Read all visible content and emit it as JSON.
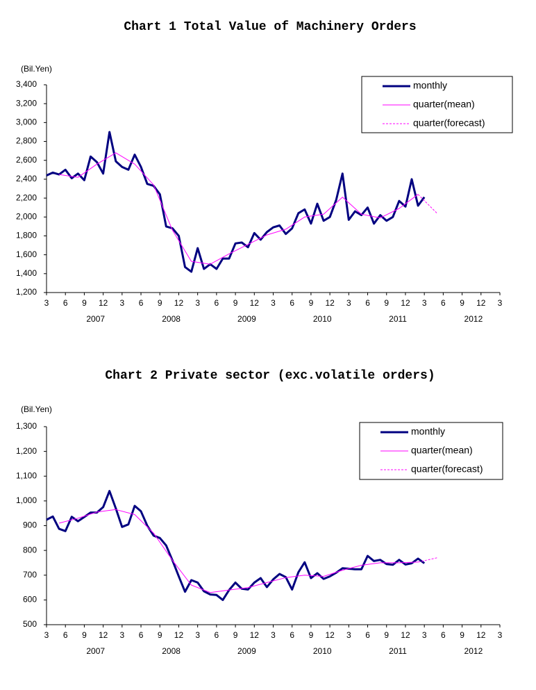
{
  "chart_data": [
    {
      "type": "line",
      "title": "Chart 1 Total Value of Machinery Orders",
      "y_unit": "(Bil.Yen)",
      "x": [
        "2007-03",
        "2007-04",
        "2007-05",
        "2007-06",
        "2007-07",
        "2007-08",
        "2007-09",
        "2007-10",
        "2007-11",
        "2007-12",
        "2008-01",
        "2008-02",
        "2008-03",
        "2008-04",
        "2008-05",
        "2008-06",
        "2008-07",
        "2008-08",
        "2008-09",
        "2008-10",
        "2008-11",
        "2008-12",
        "2009-01",
        "2009-02",
        "2009-03",
        "2009-04",
        "2009-05",
        "2009-06",
        "2009-07",
        "2009-08",
        "2009-09",
        "2009-10",
        "2009-11",
        "2009-12",
        "2010-01",
        "2010-02",
        "2010-03",
        "2010-04",
        "2010-05",
        "2010-06",
        "2010-07",
        "2010-08",
        "2010-09",
        "2010-10",
        "2010-11",
        "2010-12",
        "2011-01",
        "2011-02",
        "2011-03",
        "2011-04",
        "2011-05",
        "2011-06",
        "2011-07",
        "2011-08",
        "2011-09",
        "2011-10",
        "2011-11",
        "2011-12",
        "2012-01",
        "2012-02",
        "2012-03"
      ],
      "xlim": [
        "2007-03",
        "2013-03"
      ],
      "xticks": [
        {
          "value": "2007-03",
          "label": "3"
        },
        {
          "value": "2007-06",
          "label": "6"
        },
        {
          "value": "2007-09",
          "label": "9"
        },
        {
          "value": "2007-12",
          "label": "12"
        },
        {
          "value": "2008-03",
          "label": "3"
        },
        {
          "value": "2008-06",
          "label": "6"
        },
        {
          "value": "2008-09",
          "label": "9"
        },
        {
          "value": "2008-12",
          "label": "12"
        },
        {
          "value": "2009-03",
          "label": "3"
        },
        {
          "value": "2009-06",
          "label": "6"
        },
        {
          "value": "2009-09",
          "label": "9"
        },
        {
          "value": "2009-12",
          "label": "12"
        },
        {
          "value": "2010-03",
          "label": "3"
        },
        {
          "value": "2010-06",
          "label": "6"
        },
        {
          "value": "2010-09",
          "label": "9"
        },
        {
          "value": "2010-12",
          "label": "12"
        },
        {
          "value": "2011-03",
          "label": "3"
        },
        {
          "value": "2011-06",
          "label": "6"
        },
        {
          "value": "2011-09",
          "label": "9"
        },
        {
          "value": "2011-12",
          "label": "12"
        },
        {
          "value": "2012-03",
          "label": "3"
        },
        {
          "value": "2012-06",
          "label": "6"
        },
        {
          "value": "2012-09",
          "label": "9"
        },
        {
          "value": "2012-12",
          "label": "12"
        },
        {
          "value": "2013-03",
          "label": "3"
        }
      ],
      "x_years": [
        "2007",
        "2008",
        "2009",
        "2010",
        "2011",
        "2012"
      ],
      "ylim": [
        1200,
        3400
      ],
      "yticks": [
        {
          "value": 1200,
          "label": "1,200"
        },
        {
          "value": 1400,
          "label": "1,400"
        },
        {
          "value": 1600,
          "label": "1,600"
        },
        {
          "value": 1800,
          "label": "1,800"
        },
        {
          "value": 2000,
          "label": "2,000"
        },
        {
          "value": 2200,
          "label": "2,200"
        },
        {
          "value": 2400,
          "label": "2,400"
        },
        {
          "value": 2600,
          "label": "2,600"
        },
        {
          "value": 2800,
          "label": "2,800"
        },
        {
          "value": 3000,
          "label": "3,000"
        },
        {
          "value": 3200,
          "label": "3,200"
        },
        {
          "value": 3400,
          "label": "3,400"
        }
      ],
      "grid": false,
      "legend": "upper right",
      "series": [
        {
          "name": "monthly",
          "color": "#000080",
          "width": 3,
          "dashed": false,
          "values": [
            2440,
            2470,
            2450,
            2500,
            2410,
            2460,
            2390,
            2640,
            2580,
            2460,
            2900,
            2590,
            2530,
            2500,
            2660,
            2530,
            2350,
            2330,
            2240,
            1900,
            1880,
            1800,
            1470,
            1420,
            1670,
            1450,
            1500,
            1450,
            1560,
            1560,
            1720,
            1730,
            1680,
            1830,
            1760,
            1840,
            1890,
            1910,
            1820,
            1880,
            2040,
            2080,
            1930,
            2140,
            1960,
            2000,
            2180,
            2460,
            1970,
            2060,
            2020,
            2100,
            1930,
            2020,
            1960,
            2000,
            2170,
            2110,
            2400,
            2120,
            2210
          ]
        },
        {
          "name": "quarter(mean)",
          "color": "#ff00ff",
          "width": 1,
          "dashed": false,
          "x": [
            "2007-05",
            "2007-08",
            "2007-11",
            "2008-02",
            "2008-05",
            "2008-08",
            "2008-11",
            "2009-02",
            "2009-05",
            "2009-08",
            "2009-11",
            "2010-02",
            "2010-05",
            "2010-08",
            "2010-11",
            "2011-02",
            "2011-05",
            "2011-08",
            "2011-11",
            "2012-02"
          ],
          "values": [
            2450,
            2420,
            2560,
            2680,
            2560,
            2340,
            1860,
            1530,
            1500,
            1610,
            1710,
            1810,
            1870,
            2000,
            2030,
            2210,
            2030,
            1990,
            2090,
            2240
          ]
        },
        {
          "name": "quarter(forecast)",
          "color": "#ff00ff",
          "width": 1,
          "dashed": true,
          "x": [
            "2012-02",
            "2012-05"
          ],
          "values": [
            2240,
            2040
          ]
        }
      ]
    },
    {
      "type": "line",
      "title": "Chart 2 Private sector (exc.volatile orders)",
      "y_unit": "(Bil.Yen)",
      "x": [
        "2007-03",
        "2007-04",
        "2007-05",
        "2007-06",
        "2007-07",
        "2007-08",
        "2007-09",
        "2007-10",
        "2007-11",
        "2007-12",
        "2008-01",
        "2008-02",
        "2008-03",
        "2008-04",
        "2008-05",
        "2008-06",
        "2008-07",
        "2008-08",
        "2008-09",
        "2008-10",
        "2008-11",
        "2008-12",
        "2009-01",
        "2009-02",
        "2009-03",
        "2009-04",
        "2009-05",
        "2009-06",
        "2009-07",
        "2009-08",
        "2009-09",
        "2009-10",
        "2009-11",
        "2009-12",
        "2010-01",
        "2010-02",
        "2010-03",
        "2010-04",
        "2010-05",
        "2010-06",
        "2010-07",
        "2010-08",
        "2010-09",
        "2010-10",
        "2010-11",
        "2010-12",
        "2011-01",
        "2011-02",
        "2011-03",
        "2011-04",
        "2011-05",
        "2011-06",
        "2011-07",
        "2011-08",
        "2011-09",
        "2011-10",
        "2011-11",
        "2011-12",
        "2012-01",
        "2012-02",
        "2012-03"
      ],
      "xlim": [
        "2007-03",
        "2013-03"
      ],
      "xticks": [
        {
          "value": "2007-03",
          "label": "3"
        },
        {
          "value": "2007-06",
          "label": "6"
        },
        {
          "value": "2007-09",
          "label": "9"
        },
        {
          "value": "2007-12",
          "label": "12"
        },
        {
          "value": "2008-03",
          "label": "3"
        },
        {
          "value": "2008-06",
          "label": "6"
        },
        {
          "value": "2008-09",
          "label": "9"
        },
        {
          "value": "2008-12",
          "label": "12"
        },
        {
          "value": "2009-03",
          "label": "3"
        },
        {
          "value": "2009-06",
          "label": "6"
        },
        {
          "value": "2009-09",
          "label": "9"
        },
        {
          "value": "2009-12",
          "label": "12"
        },
        {
          "value": "2010-03",
          "label": "3"
        },
        {
          "value": "2010-06",
          "label": "6"
        },
        {
          "value": "2010-09",
          "label": "9"
        },
        {
          "value": "2010-12",
          "label": "12"
        },
        {
          "value": "2011-03",
          "label": "3"
        },
        {
          "value": "2011-06",
          "label": "6"
        },
        {
          "value": "2011-09",
          "label": "9"
        },
        {
          "value": "2011-12",
          "label": "12"
        },
        {
          "value": "2012-03",
          "label": "3"
        },
        {
          "value": "2012-06",
          "label": "6"
        },
        {
          "value": "2012-09",
          "label": "9"
        },
        {
          "value": "2012-12",
          "label": "12"
        },
        {
          "value": "2013-03",
          "label": "3"
        }
      ],
      "x_years": [
        "2007",
        "2008",
        "2009",
        "2010",
        "2011",
        "2012"
      ],
      "ylim": [
        500,
        1300
      ],
      "yticks": [
        500,
        600,
        700,
        800,
        900,
        {
          "value": 1000,
          "label": "1,000"
        },
        {
          "value": 1100,
          "label": "1,100"
        },
        {
          "value": 1200,
          "label": "1,200"
        },
        {
          "value": 1300,
          "label": "1,300"
        }
      ],
      "grid": false,
      "legend": "upper right",
      "series": [
        {
          "name": "monthly",
          "color": "#000080",
          "width": 3,
          "dashed": false,
          "values": [
            924,
            937,
            887,
            878,
            936,
            918,
            935,
            953,
            953,
            975,
            1040,
            970,
            895,
            905,
            980,
            958,
            900,
            860,
            850,
            820,
            760,
            695,
            633,
            680,
            670,
            635,
            622,
            620,
            600,
            640,
            670,
            645,
            642,
            670,
            688,
            652,
            683,
            705,
            692,
            642,
            712,
            752,
            688,
            708,
            685,
            695,
            710,
            728,
            726,
            724,
            724,
            778,
            757,
            762,
            745,
            742,
            762,
            743,
            748,
            767,
            748
          ]
        },
        {
          "name": "quarter(mean)",
          "color": "#ff00ff",
          "width": 1,
          "dashed": false,
          "x": [
            "2007-05",
            "2007-08",
            "2007-11",
            "2008-02",
            "2008-05",
            "2008-08",
            "2008-11",
            "2009-02",
            "2009-05",
            "2009-08",
            "2009-11",
            "2010-02",
            "2010-05",
            "2010-08",
            "2010-11",
            "2011-02",
            "2011-05",
            "2011-08",
            "2011-11",
            "2012-02"
          ],
          "values": [
            910,
            930,
            955,
            965,
            945,
            870,
            760,
            660,
            630,
            640,
            650,
            670,
            690,
            700,
            695,
            720,
            740,
            750,
            750,
            753
          ]
        },
        {
          "name": "quarter(forecast)",
          "color": "#ff00ff",
          "width": 1,
          "dashed": true,
          "x": [
            "2012-02",
            "2012-05"
          ],
          "values": [
            753,
            770
          ]
        }
      ]
    }
  ]
}
